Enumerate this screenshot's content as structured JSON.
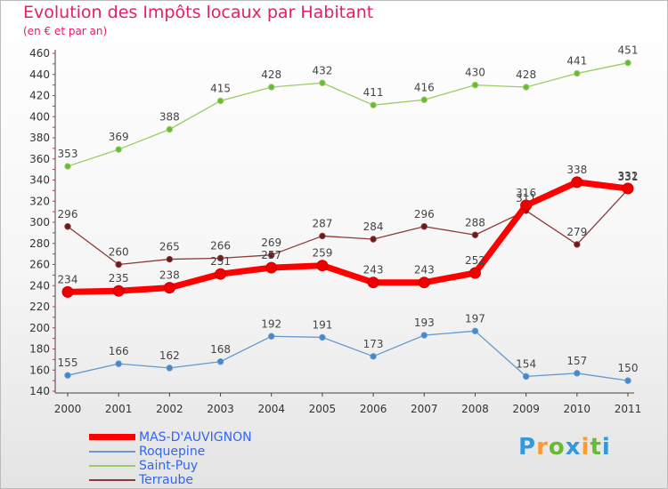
{
  "title": "Evolution des Impôts locaux par Habitant",
  "subtitle": "(en € et par an)",
  "brand": "Proxiti",
  "chart_data": {
    "type": "line",
    "categories": [
      "2000",
      "2001",
      "2002",
      "2003",
      "2004",
      "2005",
      "2006",
      "2007",
      "2008",
      "2009",
      "2010",
      "2011"
    ],
    "ylim": [
      140,
      460
    ],
    "yticks": [
      140,
      160,
      180,
      200,
      220,
      240,
      260,
      280,
      300,
      320,
      340,
      360,
      380,
      400,
      420,
      440,
      460
    ],
    "grid": false,
    "legend_position": "bottom-left",
    "series": [
      {
        "name": "Saint-Puy",
        "color": "#99cc66",
        "marker": "#66bb33",
        "width": 1.3,
        "values": [
          353,
          369,
          388,
          415,
          428,
          432,
          411,
          416,
          430,
          428,
          441,
          451
        ]
      },
      {
        "name": "Terraube",
        "color": "#8b3a3a",
        "marker": "#6b1a1a",
        "width": 1.3,
        "values": [
          296,
          260,
          265,
          266,
          269,
          287,
          284,
          296,
          288,
          311,
          279,
          331
        ]
      },
      {
        "name": "Roquepine",
        "color": "#6699cc",
        "marker": "#4488cc",
        "width": 1.3,
        "values": [
          155,
          166,
          162,
          168,
          192,
          191,
          173,
          193,
          197,
          154,
          157,
          150
        ]
      },
      {
        "name": "MAS-D'AUVIGNON",
        "color": "#ff0000",
        "marker": "#ee0000",
        "width": 7,
        "values": [
          234,
          235,
          238,
          251,
          257,
          259,
          243,
          243,
          252,
          316,
          338,
          332
        ]
      }
    ],
    "legend": [
      {
        "name": "MAS-D'AUVIGNON",
        "color": "#ff0000",
        "thickness": 7
      },
      {
        "name": "Roquepine",
        "color": "#6699cc",
        "thickness": 2
      },
      {
        "name": "Saint-Puy",
        "color": "#99cc66",
        "thickness": 2
      },
      {
        "name": "Terraube",
        "color": "#8b3a3a",
        "thickness": 2
      }
    ]
  }
}
